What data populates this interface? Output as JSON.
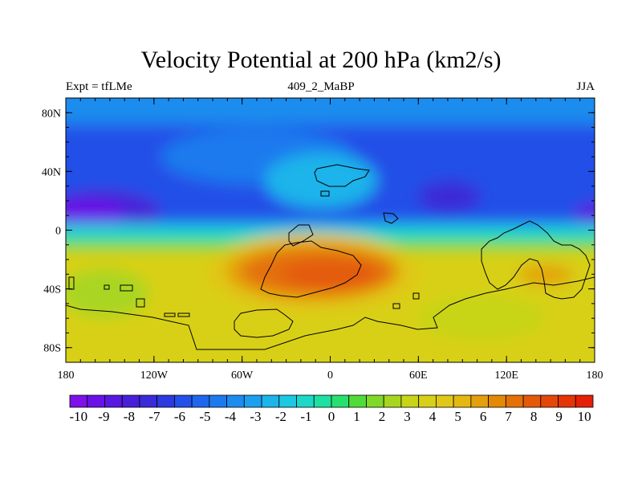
{
  "title": "Velocity Potential at 200 hPa (km2/s)",
  "left_label": "Expt = tfLMe",
  "center_label": "409_2_MaBP",
  "right_label": "JJA",
  "map": {
    "lon_range": [
      -180,
      180
    ],
    "lat_range": [
      -90,
      90
    ],
    "x_ticks": [
      {
        "value": -180,
        "label": "180"
      },
      {
        "value": -120,
        "label": "120W"
      },
      {
        "value": -60,
        "label": "60W"
      },
      {
        "value": 0,
        "label": "0"
      },
      {
        "value": 60,
        "label": "60E"
      },
      {
        "value": 120,
        "label": "120E"
      },
      {
        "value": 180,
        "label": "180"
      }
    ],
    "y_ticks": [
      {
        "value": 80,
        "label": "80N"
      },
      {
        "value": 40,
        "label": "40N"
      },
      {
        "value": 0,
        "label": "0"
      },
      {
        "value": -40,
        "label": "40S"
      },
      {
        "value": -80,
        "label": "80S"
      }
    ]
  },
  "colorbar": {
    "levels": [
      -10,
      -9,
      -8,
      -7,
      -6,
      -5,
      -4,
      -3,
      -2,
      -1,
      0,
      1,
      2,
      3,
      4,
      5,
      6,
      7,
      8,
      9,
      10
    ],
    "colors": [
      "#7e10e8",
      "#6a10e8",
      "#5818e0",
      "#4820d8",
      "#3a2ad8",
      "#2c3ae0",
      "#2250e8",
      "#1e66ec",
      "#1c7aee",
      "#1c8cee",
      "#1ca0ee",
      "#1cb4ea",
      "#1cc8e2",
      "#1cd8c8",
      "#1ee0a0",
      "#28e070",
      "#50dc38",
      "#80d828",
      "#a8d620",
      "#c8d418",
      "#d8d018",
      "#e0c818",
      "#e4b810",
      "#e4a00c",
      "#e48808",
      "#e47008",
      "#e45a08",
      "#e44808",
      "#e43408",
      "#e42008"
    ]
  }
}
